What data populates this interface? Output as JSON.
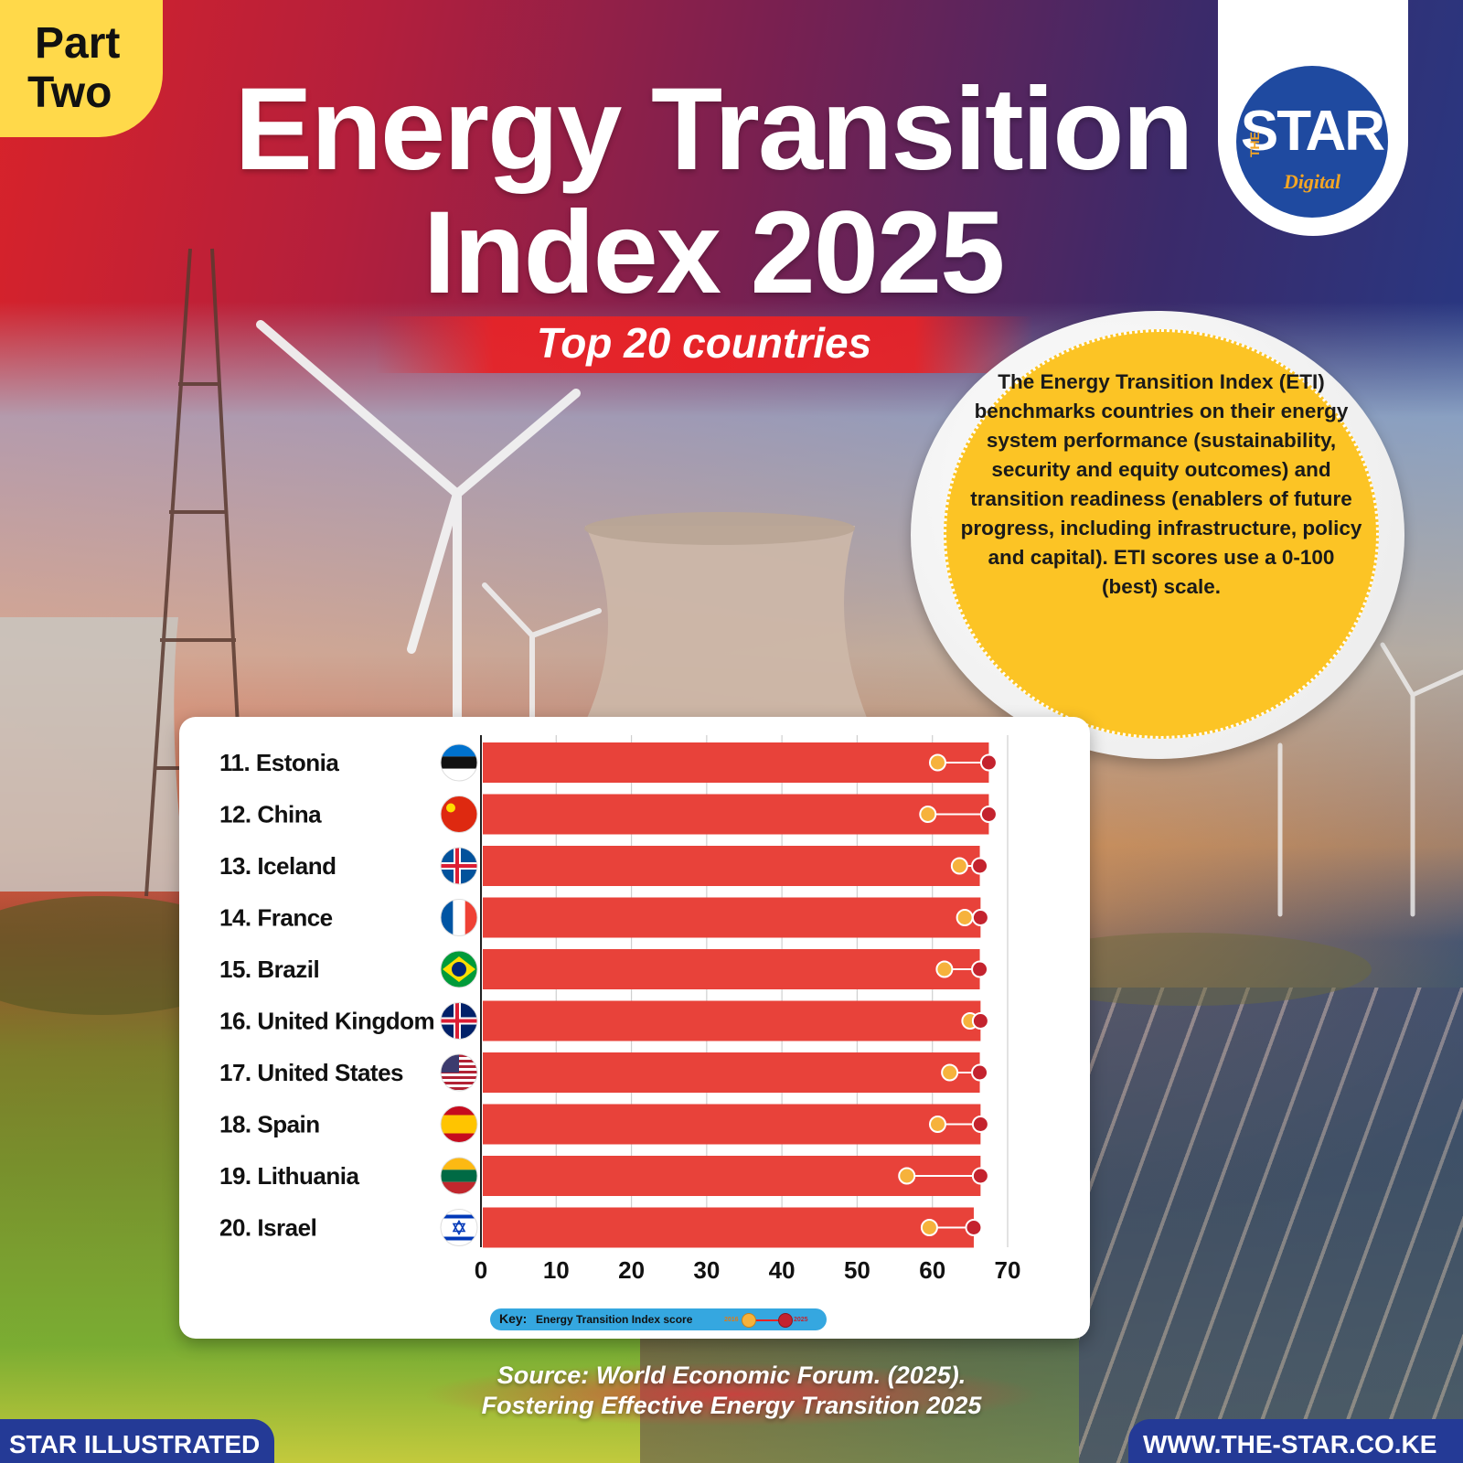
{
  "badge": {
    "line1": "Part",
    "line2": "Two"
  },
  "title": {
    "line1": "Energy Transition",
    "line2": "Index 2025"
  },
  "subtitle": "Top 20 countries",
  "logo": {
    "the": "THE",
    "star": "STAR",
    "digital": "Digital"
  },
  "description": "The Energy Transition Index (ETI) benchmarks countries on their energy system performance (sustainability, security and equity outcomes) and transition readiness (enablers of future progress, including infrastructure, policy and capital). ETI scores use a 0-100 (best) scale.",
  "key": {
    "label": "Key:",
    "text": "Energy Transition Index score",
    "year_a": "2016",
    "year_b": "2025"
  },
  "source": {
    "line1": "Source: World Economic Forum. (2025).",
    "line2": "Fostering Effective Energy Transition 2025"
  },
  "footer": {
    "left": "STAR ILLUSTRATED",
    "right": "WWW.THE-STAR.CO.KE"
  },
  "colors": {
    "bar": "#e8423a",
    "dot_2016": "#f6b23c",
    "dot_2025": "#c4232e",
    "accent_yellow": "#fcc425",
    "brand_blue": "#243a96"
  },
  "chart_data": {
    "type": "bar",
    "orientation": "horizontal",
    "categories": [
      "11. Estonia",
      "12. China",
      "13. Iceland",
      "14. France",
      "15. Brazil",
      "16. United Kingdom",
      "17. United States",
      "18. Spain",
      "19. Lithuania",
      "20. Israel"
    ],
    "flags": [
      "estonia",
      "china",
      "iceland",
      "france",
      "brazil",
      "united-kingdom",
      "united-states",
      "spain",
      "lithuania",
      "israel"
    ],
    "values": [
      67.5,
      67.5,
      66.3,
      66.4,
      66.3,
      66.4,
      66.3,
      66.4,
      66.4,
      65.5
    ],
    "series": [
      {
        "name": "2016",
        "values": [
          60.7,
          59.4,
          63.6,
          64.3,
          61.6,
          65.0,
          62.3,
          60.7,
          56.6,
          59.6
        ]
      },
      {
        "name": "2025",
        "values": [
          67.5,
          67.5,
          66.3,
          66.4,
          66.3,
          66.4,
          66.3,
          66.4,
          66.4,
          65.5
        ]
      }
    ],
    "xticks": [
      "0",
      "10",
      "20",
      "30",
      "40",
      "50",
      "60",
      "70"
    ],
    "xlim": [
      0,
      70
    ],
    "grid": true
  }
}
